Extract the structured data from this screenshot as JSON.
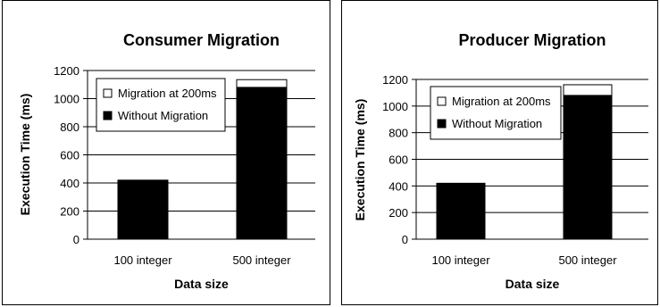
{
  "chart_data": [
    {
      "type": "bar",
      "title": "Consumer Migration",
      "xlabel": "Data size",
      "ylabel": "Execution Time (ms)",
      "categories": [
        "100 integer",
        "500 integer"
      ],
      "ylim": [
        0,
        1200
      ],
      "yticks": [
        0,
        200,
        400,
        600,
        800,
        1000,
        1200
      ],
      "stacked": true,
      "grid": true,
      "legend_position": "top-left",
      "series": [
        {
          "name": "Without Migration",
          "values": [
            420,
            1080
          ],
          "color": "#000000"
        },
        {
          "name": "Migration at 200ms",
          "values": [
            0,
            55
          ],
          "color": "#ffffff"
        }
      ],
      "legend": [
        "Migration at 200ms",
        "Without Migration"
      ]
    },
    {
      "type": "bar",
      "title": "Producer Migration",
      "xlabel": "Data size",
      "ylabel": "Execution Time (ms)",
      "categories": [
        "100 integer",
        "500 integer"
      ],
      "ylim": [
        0,
        1200
      ],
      "yticks": [
        0,
        200,
        400,
        600,
        800,
        1000,
        1200
      ],
      "stacked": true,
      "grid": true,
      "legend_position": "top-left",
      "series": [
        {
          "name": "Without Migration",
          "values": [
            420,
            1080
          ],
          "color": "#000000"
        },
        {
          "name": "Migration at 200ms",
          "values": [
            0,
            80
          ],
          "color": "#ffffff"
        }
      ],
      "legend": [
        "Migration at 200ms",
        "Without Migration"
      ]
    }
  ]
}
